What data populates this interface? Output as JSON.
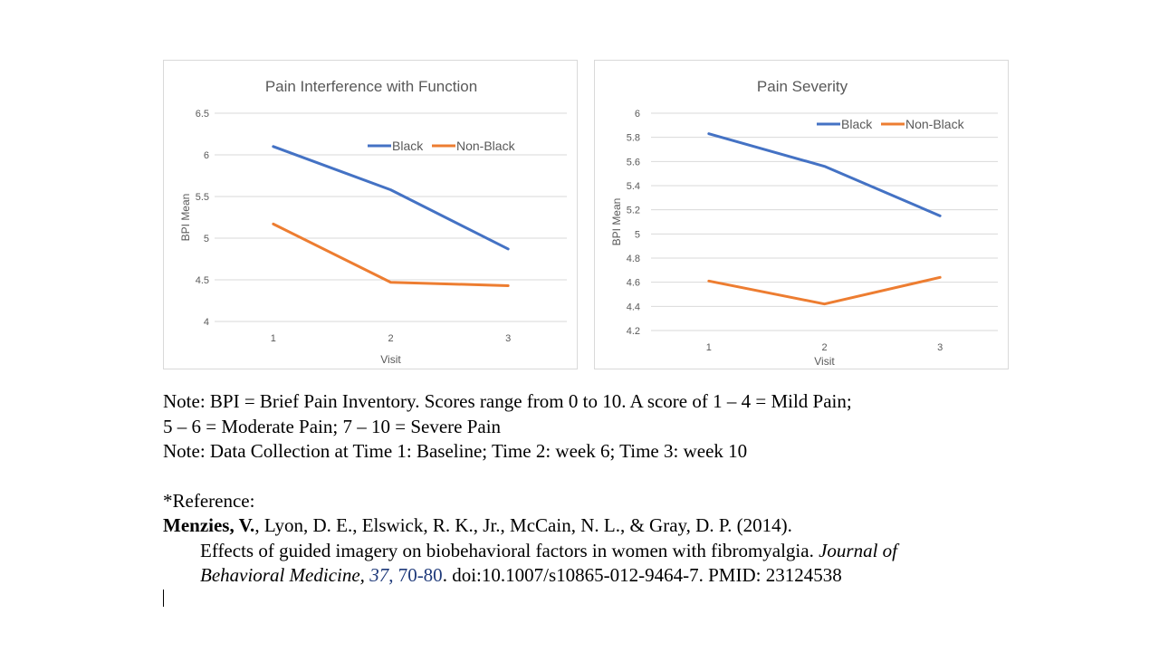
{
  "chart_data": [
    {
      "type": "line",
      "title": "Pain Interference with Function",
      "xlabel": "Visit",
      "ylabel": "BPI Mean",
      "categories": [
        "1",
        "2",
        "3"
      ],
      "ylim": [
        4,
        6.5
      ],
      "yticks": [
        "4",
        "4.5",
        "5",
        "5.5",
        "6",
        "6.5"
      ],
      "ytick_values": [
        4,
        4.5,
        5,
        5.5,
        6,
        6.5
      ],
      "grid": true,
      "legend_position": "top-right",
      "series": [
        {
          "name": "Black",
          "color": "#4472c4",
          "values": [
            6.1,
            5.58,
            4.87
          ]
        },
        {
          "name": "Non-Black",
          "color": "#ed7d31",
          "values": [
            5.17,
            4.47,
            4.43
          ]
        }
      ]
    },
    {
      "type": "line",
      "title": "Pain Severity",
      "xlabel": "Visit",
      "ylabel": "BPI Mean",
      "categories": [
        "1",
        "2",
        "3"
      ],
      "ylim": [
        4.2,
        6
      ],
      "yticks": [
        "4.2",
        "4.4",
        "4.6",
        "4.8",
        "5",
        "5.2",
        "5.4",
        "5.6",
        "5.8",
        "6"
      ],
      "ytick_values": [
        4.2,
        4.4,
        4.6,
        4.8,
        5,
        5.2,
        5.4,
        5.6,
        5.8,
        6
      ],
      "grid": true,
      "legend_position": "top-right",
      "series": [
        {
          "name": "Black",
          "color": "#4472c4",
          "values": [
            5.83,
            5.56,
            5.15
          ]
        },
        {
          "name": "Non-Black",
          "color": "#ed7d31",
          "values": [
            4.61,
            4.42,
            4.64
          ]
        }
      ]
    }
  ],
  "notes": {
    "line1": "Note:  BPI = Brief Pain Inventory. Scores range from 0 to 10. A score of 1 – 4 = Mild Pain;",
    "line2": "5 – 6 = Moderate Pain; 7 – 10 = Severe Pain",
    "line3": "Note:  Data Collection at Time 1: Baseline; Time 2: week 6; Time 3: week 10"
  },
  "reference": {
    "heading": "*Reference:",
    "author_bold": "Menzies, V.",
    "authors_rest": ", Lyon, D. E., Elswick, R. K., Jr., McCain, N. L., & Gray, D. P. (2014).",
    "title": "Effects of guided imagery on biobehavioral factors in women with fibromyalgia. ",
    "journal_part1": "Journal of",
    "journal_part2": "Behavioral Medicine, ",
    "volume": "37",
    "comma": ", ",
    "pages": "70-80",
    "tail": ". doi:10.1007/s10865-012-9464-7. PMID: 23124538"
  }
}
